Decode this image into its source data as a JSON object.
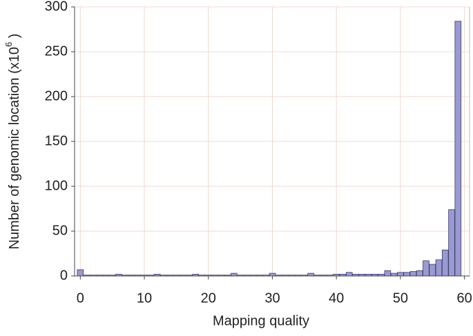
{
  "chart_data": {
    "type": "bar",
    "x_label": "Mapping quality",
    "y_label": "Number of genomic location (x10",
    "y_label_sup": "6",
    "y_label_end": " )",
    "x": [
      0,
      1,
      2,
      3,
      4,
      5,
      6,
      7,
      8,
      9,
      10,
      11,
      12,
      13,
      14,
      15,
      16,
      17,
      18,
      19,
      20,
      21,
      22,
      23,
      24,
      25,
      26,
      27,
      28,
      29,
      30,
      31,
      32,
      33,
      34,
      35,
      36,
      37,
      38,
      39,
      40,
      41,
      42,
      43,
      44,
      45,
      46,
      47,
      48,
      49,
      50,
      51,
      52,
      53,
      54,
      55,
      56,
      57,
      58,
      59,
      60
    ],
    "values": [
      7,
      1,
      1,
      1,
      1,
      1,
      2,
      1,
      1,
      1,
      1,
      1,
      2,
      1,
      1,
      1,
      1,
      1,
      2,
      1,
      1,
      1,
      1,
      1,
      3,
      1,
      1,
      1,
      1,
      1,
      3,
      1,
      1,
      1,
      1,
      1,
      3,
      1,
      1,
      1,
      2,
      2,
      4,
      2,
      2,
      2,
      2,
      2,
      6,
      3,
      4,
      4,
      5,
      6,
      17,
      13,
      18,
      29,
      74,
      284,
      0
    ],
    "color": "#9a9ad0",
    "edge_color": "#3a3a6a",
    "xlim": [
      -0.9,
      60.8
    ],
    "xticks": [
      0,
      10,
      20,
      30,
      40,
      50,
      60
    ],
    "ylim": [
      0,
      300
    ],
    "yticks": [
      0,
      50,
      100,
      150,
      200,
      250,
      300
    ],
    "grid": true
  }
}
